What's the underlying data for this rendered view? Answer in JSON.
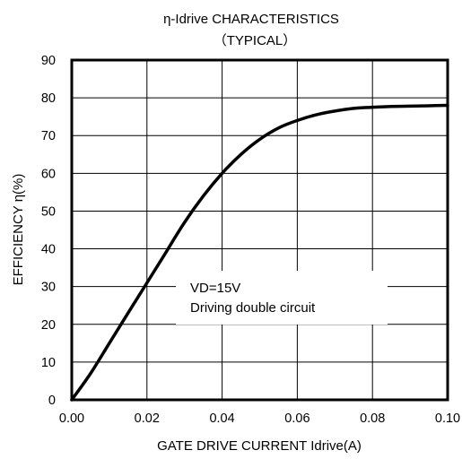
{
  "chart_data": {
    "type": "line",
    "title": "η-Idrive  CHARACTERISTICS",
    "subtitle": "（TYPICAL）",
    "xlabel": "GATE  DRIVE  CURRENT   Idrive(A)",
    "ylabel": "EFFICIENCY   η(%)",
    "xlim": [
      0.0,
      0.1
    ],
    "ylim": [
      0,
      90
    ],
    "x_ticks": [
      "0.00",
      "0.02",
      "0.04",
      "0.06",
      "0.08",
      "0.10"
    ],
    "y_ticks": [
      "0",
      "10",
      "20",
      "30",
      "40",
      "50",
      "60",
      "70",
      "80",
      "90"
    ],
    "grid": true,
    "legend": "none",
    "annotations": [
      "VD=15V",
      "Driving double circuit"
    ],
    "series": [
      {
        "x": [
          0.0,
          0.005,
          0.01,
          0.015,
          0.02,
          0.025,
          0.03,
          0.035,
          0.04,
          0.045,
          0.05,
          0.055,
          0.06,
          0.065,
          0.07,
          0.075,
          0.08,
          0.085,
          0.09,
          0.095,
          0.1
        ],
        "y": [
          0,
          7,
          15,
          23,
          31,
          39,
          47,
          54,
          60,
          65,
          69,
          72,
          74,
          75.5,
          76.5,
          77.2,
          77.5,
          77.7,
          77.8,
          77.9,
          78
        ]
      }
    ],
    "color": "#000000"
  }
}
